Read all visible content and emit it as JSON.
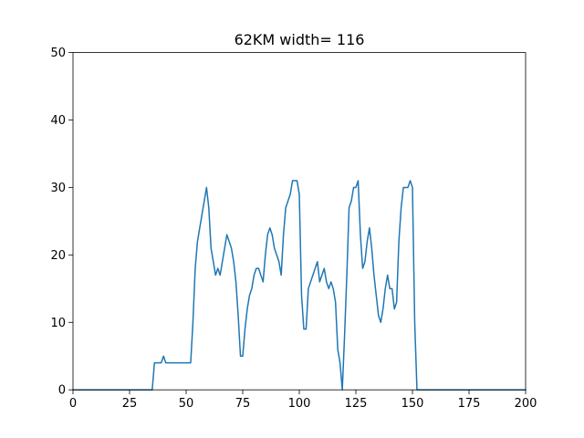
{
  "chart_data": {
    "type": "line",
    "title": "62KM width= 116",
    "xlabel": "",
    "ylabel": "",
    "xlim": [
      0,
      200
    ],
    "ylim": [
      0,
      50
    ],
    "grid": false,
    "xticks": [
      0,
      25,
      50,
      75,
      100,
      125,
      150,
      175,
      200
    ],
    "yticks": [
      0,
      10,
      20,
      30,
      40,
      50
    ],
    "series": [
      {
        "color": "#1f77b4",
        "points": [
          [
            0,
            0
          ],
          [
            35,
            0
          ],
          [
            36,
            4
          ],
          [
            39,
            4
          ],
          [
            40,
            5
          ],
          [
            41,
            4
          ],
          [
            52,
            4
          ],
          [
            53,
            10
          ],
          [
            54,
            18
          ],
          [
            55,
            22
          ],
          [
            57,
            26
          ],
          [
            59,
            30
          ],
          [
            60,
            27
          ],
          [
            61,
            21
          ],
          [
            62,
            19
          ],
          [
            63,
            17
          ],
          [
            64,
            18
          ],
          [
            65,
            17
          ],
          [
            66,
            19
          ],
          [
            67,
            21
          ],
          [
            68,
            23
          ],
          [
            69,
            22
          ],
          [
            70,
            21
          ],
          [
            71,
            19
          ],
          [
            72,
            16
          ],
          [
            73,
            11
          ],
          [
            74,
            5
          ],
          [
            75,
            5
          ],
          [
            76,
            9
          ],
          [
            77,
            12
          ],
          [
            78,
            14
          ],
          [
            79,
            15
          ],
          [
            80,
            17
          ],
          [
            81,
            18
          ],
          [
            82,
            18
          ],
          [
            83,
            17
          ],
          [
            84,
            16
          ],
          [
            85,
            20
          ],
          [
            86,
            23
          ],
          [
            87,
            24
          ],
          [
            88,
            23
          ],
          [
            89,
            21
          ],
          [
            90,
            20
          ],
          [
            91,
            19
          ],
          [
            92,
            17
          ],
          [
            93,
            23
          ],
          [
            94,
            27
          ],
          [
            95,
            28
          ],
          [
            96,
            29
          ],
          [
            97,
            31
          ],
          [
            98,
            31
          ],
          [
            99,
            31
          ],
          [
            100,
            29
          ],
          [
            101,
            14
          ],
          [
            102,
            9
          ],
          [
            103,
            9
          ],
          [
            104,
            15
          ],
          [
            105,
            16
          ],
          [
            106,
            17
          ],
          [
            107,
            18
          ],
          [
            108,
            19
          ],
          [
            109,
            16
          ],
          [
            110,
            17
          ],
          [
            111,
            18
          ],
          [
            112,
            16
          ],
          [
            113,
            15
          ],
          [
            114,
            16
          ],
          [
            115,
            15
          ],
          [
            116,
            13
          ],
          [
            117,
            6
          ],
          [
            118,
            4
          ],
          [
            119,
            0
          ],
          [
            120,
            8
          ],
          [
            121,
            17
          ],
          [
            122,
            27
          ],
          [
            123,
            28
          ],
          [
            124,
            30
          ],
          [
            125,
            30
          ],
          [
            126,
            31
          ],
          [
            127,
            23
          ],
          [
            128,
            18
          ],
          [
            129,
            19
          ],
          [
            130,
            22
          ],
          [
            131,
            24
          ],
          [
            132,
            21
          ],
          [
            133,
            17
          ],
          [
            134,
            14
          ],
          [
            135,
            11
          ],
          [
            136,
            10
          ],
          [
            137,
            12
          ],
          [
            138,
            15
          ],
          [
            139,
            17
          ],
          [
            140,
            15
          ],
          [
            141,
            15
          ],
          [
            142,
            12
          ],
          [
            143,
            13
          ],
          [
            144,
            22
          ],
          [
            145,
            27
          ],
          [
            146,
            30
          ],
          [
            147,
            30
          ],
          [
            148,
            30
          ],
          [
            149,
            31
          ],
          [
            150,
            30
          ],
          [
            151,
            10
          ],
          [
            152,
            0
          ],
          [
            200,
            0
          ]
        ]
      }
    ]
  }
}
